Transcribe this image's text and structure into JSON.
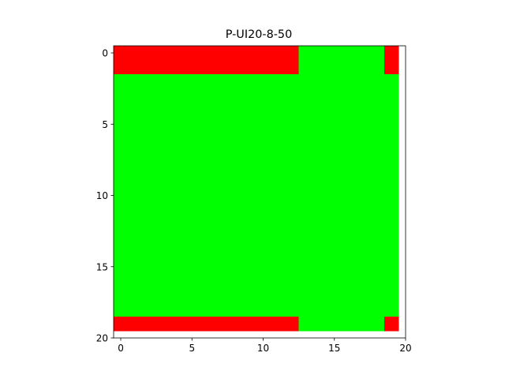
{
  "chart_data": {
    "type": "heatmap",
    "title": "P-UI20-8-50",
    "xlabel": "",
    "ylabel": "",
    "grid": false,
    "xlim": [
      -0.5,
      20
    ],
    "ylim": [
      20,
      -0.5
    ],
    "x_ticks": [
      0,
      5,
      10,
      15,
      20
    ],
    "y_ticks": [
      0,
      5,
      10,
      15,
      20
    ],
    "rows": 20,
    "cols": 20,
    "colors": {
      "red": "#ff0000",
      "green": "#00ff00",
      "empty": "#ffffff"
    },
    "cells": [
      "RRRRRRRRRRRRRGGGGGGR",
      "RRRRRRRRRRRRRGGGGGGR",
      "GGGGGGGGGGGGGGGGGGGG",
      "GGGGGGGGGGGGGGGGGGGG",
      "GGGGGGGGGGGGGGGGGGGG",
      "GGGGGGGGGGGGGGGGGGGG",
      "GGGGGGGGGGGGGGGGGGGG",
      "GGGGGGGGGGGGGGGGGGGG",
      "GGGGGGGGGGGGGGGGGGGG",
      "GGGGGGGGGGGGGGGGGGGG",
      "GGGGGGGGGGGGGGGGGGGG",
      "GGGGGGGGGGGGGGGGGGGG",
      "GGGGGGGGGGGGGGGGGGGG",
      "GGGGGGGGGGGGGGGGGGGG",
      "GGGGGGGGGGGGGGGGGGGG",
      "GGGGGGGGGGGGGGGGGGGG",
      "GGGGGGGGGGGGGGGGGGGG",
      "GGGGGGGGGGGGGGGGGGGG",
      "GGGGGGGGGGGGGGGGGGGG",
      "RRRRRRRRRRRRRGGGGGGR"
    ]
  }
}
